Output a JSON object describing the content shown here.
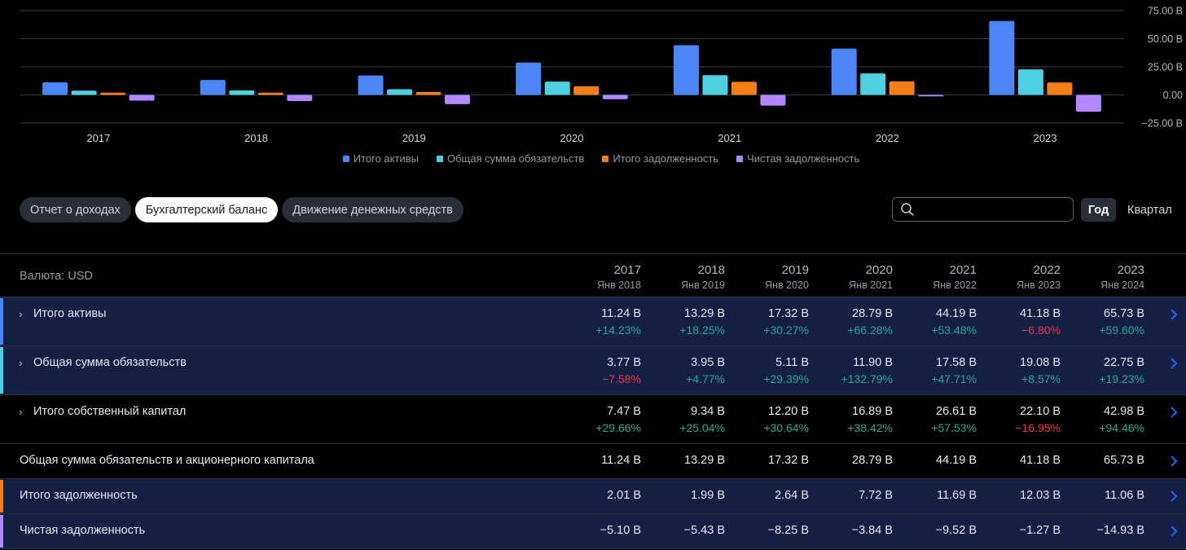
{
  "chart_data": {
    "type": "bar",
    "categories": [
      "2017",
      "2018",
      "2019",
      "2020",
      "2021",
      "2022",
      "2023"
    ],
    "series": [
      {
        "name": "Итого активы",
        "color": "#4a86f7",
        "values": [
          11.24,
          13.29,
          17.32,
          28.79,
          44.19,
          41.18,
          65.73
        ]
      },
      {
        "name": "Общая сумма обязательств",
        "color": "#4dd0e1",
        "values": [
          3.77,
          3.95,
          5.11,
          11.9,
          17.58,
          19.08,
          22.75
        ]
      },
      {
        "name": "Итого задолженность",
        "color": "#f57f17",
        "values": [
          2.01,
          1.99,
          2.64,
          7.72,
          11.69,
          12.03,
          11.06
        ]
      },
      {
        "name": "Чистая задолженность",
        "color": "#b388ff",
        "values": [
          -5.1,
          -5.43,
          -8.25,
          -3.84,
          -9.52,
          -1.27,
          -14.93
        ]
      }
    ],
    "yticks": [
      75,
      50,
      25,
      0,
      -25
    ],
    "ytick_labels": [
      "75.00 B",
      "50.00 B",
      "25.00 B",
      "0.00",
      "−25.00 B"
    ],
    "ylim": [
      -25,
      75
    ],
    "legend": "bottom"
  },
  "tabs": [
    {
      "label": "Отчет о доходах",
      "active": false
    },
    {
      "label": "Бухгалтерский баланс",
      "active": true
    },
    {
      "label": "Движение денежных средств",
      "active": false
    }
  ],
  "search": {
    "value": "",
    "placeholder": ""
  },
  "period": {
    "year": "Год",
    "quarter": "Квартал"
  },
  "table": {
    "currency_label": "Валюта: USD",
    "columns": [
      {
        "year": "2017",
        "date": "Янв 2018"
      },
      {
        "year": "2018",
        "date": "Янв 2019"
      },
      {
        "year": "2019",
        "date": "Янв 2020"
      },
      {
        "year": "2020",
        "date": "Янв 2021"
      },
      {
        "year": "2021",
        "date": "Янв 2022"
      },
      {
        "year": "2022",
        "date": "Янв 2023"
      },
      {
        "year": "2023",
        "date": "Янв 2024"
      }
    ],
    "rows": [
      {
        "label": "Итого активы",
        "values": [
          "11.24 B",
          "13.29 B",
          "17.32 B",
          "28.79 B",
          "44.19 B",
          "41.18 B",
          "65.73 B"
        ],
        "changes": [
          "+14.23%",
          "+18.25%",
          "+30.27%",
          "+66.28%",
          "+53.48%",
          "−6.80%",
          "+59.60%"
        ]
      },
      {
        "label": "Общая сумма обязательств",
        "values": [
          "3.77 B",
          "3.95 B",
          "5.11 B",
          "11.90 B",
          "17.58 B",
          "19.08 B",
          "22.75 B"
        ],
        "changes": [
          "−7.58%",
          "+4.77%",
          "+29.39%",
          "+132.79%",
          "+47.71%",
          "+8.57%",
          "+19.23%"
        ]
      },
      {
        "label": "Итого собственный капитал",
        "values": [
          "7.47 B",
          "9.34 B",
          "12.20 B",
          "16.89 B",
          "26.61 B",
          "22.10 B",
          "42.98 B"
        ],
        "changes": [
          "+29.66%",
          "+25.04%",
          "+30.64%",
          "+38.42%",
          "+57.53%",
          "−16.95%",
          "+94.46%"
        ]
      },
      {
        "label": "Общая сумма обязательств и акционерного капитала",
        "values": [
          "11.24 B",
          "13.29 B",
          "17.32 B",
          "28.79 B",
          "44.19 B",
          "41.18 B",
          "65.73 B"
        ]
      },
      {
        "label": "Итого задолженность",
        "values": [
          "2.01 B",
          "1.99 B",
          "2.64 B",
          "7.72 B",
          "11.69 B",
          "12.03 B",
          "11.06 B"
        ]
      },
      {
        "label": "Чистая задолженность",
        "values": [
          "−5.10 B",
          "−5.43 B",
          "−8.25 B",
          "−3.84 B",
          "−9.52 B",
          "−1.27 B",
          "−14.93 B"
        ]
      }
    ]
  },
  "colors": {
    "assets": "#4a86f7",
    "liabilities": "#4dd0e1",
    "debt": "#f57f17",
    "net_debt": "#b388ff",
    "positive": "#22ab94",
    "negative": "#f23645",
    "highlight_row": "#141f44",
    "link_arrow": "#2962ff"
  }
}
